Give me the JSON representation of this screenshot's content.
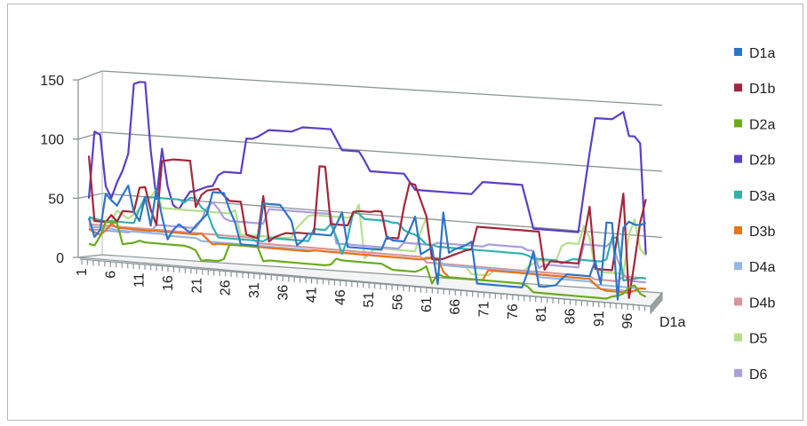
{
  "chart_data": {
    "type": "line",
    "subtype": "3d-line",
    "title": "",
    "xlabel": "",
    "ylabel": "",
    "series_axis_label": "D1a",
    "ylim": [
      0,
      150
    ],
    "yticks": [
      "0",
      "50",
      "100",
      "150"
    ],
    "x_tick_labels": [
      "1",
      "6",
      "11",
      "16",
      "21",
      "26",
      "31",
      "36",
      "41",
      "46",
      "51",
      "56",
      "61",
      "66",
      "71",
      "76",
      "81",
      "86",
      "91",
      "96"
    ],
    "x_count": 100,
    "grid": true,
    "legend_position": "right",
    "series": [
      {
        "name": "D1a",
        "color": "#2e75c8",
        "values": [
          29,
          14,
          20,
          50,
          45,
          41,
          50,
          58,
          37,
          30,
          50,
          27,
          57,
          35,
          17,
          25,
          30,
          27,
          24,
          30,
          35,
          40,
          58,
          58,
          58,
          45,
          35,
          18,
          18,
          18,
          18,
          52,
          52,
          52,
          52,
          46,
          40,
          21,
          25,
          31,
          31,
          31,
          31,
          31,
          40,
          50,
          23,
          23,
          23,
          23,
          23,
          23,
          23,
          34,
          31,
          31,
          31,
          40,
          51,
          22,
          25,
          28,
          0,
          56,
          25,
          28,
          30,
          32,
          35,
          3,
          3,
          3,
          3,
          3,
          3,
          3,
          3,
          3,
          15,
          31,
          5,
          5,
          6,
          7,
          12,
          16,
          16,
          16,
          16,
          16,
          28,
          11,
          58,
          58,
          0,
          55,
          60,
          58,
          58,
          60
        ]
      },
      {
        "name": "D1b",
        "color": "#a3273a",
        "values": [
          80,
          27,
          27,
          27,
          33,
          28,
          37,
          37,
          37,
          57,
          58,
          40,
          28,
          80,
          81,
          82,
          82,
          82,
          82,
          45,
          55,
          59,
          60,
          61,
          56,
          52,
          52,
          52,
          26,
          25,
          24,
          58,
          22,
          26,
          28,
          30,
          30,
          31,
          31,
          31,
          31,
          85,
          85,
          40,
          40,
          40,
          40,
          51,
          52,
          52,
          52,
          53,
          53,
          32,
          33,
          33,
          58,
          77,
          76,
          64,
          52,
          19,
          19,
          20,
          22,
          24,
          26,
          28,
          29,
          47,
          47,
          47,
          47,
          47,
          47,
          47,
          47,
          47,
          47,
          47,
          47,
          18,
          25,
          25,
          25,
          25,
          25,
          25,
          45,
          69,
          22,
          22,
          22,
          22,
          50,
          81,
          2,
          30,
          60,
          78
        ]
      },
      {
        "name": "D2a",
        "color": "#6bab1e",
        "values": [
          8,
          7,
          15,
          27,
          27,
          27,
          10,
          11,
          12,
          14,
          13,
          13,
          13,
          13,
          13,
          13,
          13,
          13,
          12,
          10,
          2,
          3,
          3,
          3,
          5,
          17,
          17,
          17,
          17,
          17,
          17,
          6,
          7,
          7,
          7,
          7,
          7,
          7,
          7,
          7,
          7,
          7,
          7,
          8,
          13,
          12,
          12,
          12,
          12,
          12,
          12,
          12,
          12,
          10,
          8,
          8,
          8,
          8,
          8,
          10,
          13,
          0,
          8,
          6,
          6,
          6,
          6,
          6,
          6,
          6,
          6,
          6,
          6,
          6,
          6,
          6,
          6,
          6,
          4,
          0,
          0,
          0,
          0,
          0,
          0,
          0,
          0,
          0,
          0,
          0,
          0,
          0,
          0,
          2,
          3,
          5,
          10,
          12,
          6,
          4
        ]
      },
      {
        "name": "D2b",
        "color": "#5b3fc4",
        "values": [
          45,
          100,
          98,
          56,
          47,
          60,
          70,
          84,
          141,
          143,
          143,
          88,
          49,
          90,
          60,
          45,
          42,
          50,
          57,
          58,
          60,
          62,
          63,
          72,
          75,
          75,
          75,
          75,
          103,
          103,
          105,
          108,
          111,
          111,
          111,
          111,
          111,
          113,
          115,
          115,
          115,
          115,
          115,
          115,
          107,
          99,
          99,
          99,
          99,
          92,
          84,
          84,
          84,
          84,
          84,
          84,
          84,
          78,
          72,
          72,
          72,
          72,
          72,
          72,
          72,
          72,
          72,
          72,
          72,
          77,
          82,
          82,
          82,
          82,
          82,
          82,
          82,
          82,
          66,
          49,
          49,
          49,
          49,
          49,
          49,
          49,
          49,
          49,
          80,
          110,
          137,
          137,
          137,
          137,
          140,
          143,
          125,
          125,
          120,
          36
        ]
      },
      {
        "name": "D3a",
        "color": "#33b0b0",
        "values": [
          30,
          29,
          28,
          27,
          28,
          28,
          28,
          28,
          28,
          40,
          50,
          50,
          50,
          50,
          50,
          50,
          50,
          48,
          52,
          52,
          45,
          42,
          30,
          22,
          22,
          22,
          22,
          22,
          22,
          22,
          22,
          22,
          25,
          25,
          25,
          25,
          25,
          25,
          25,
          25,
          35,
          35,
          35,
          40,
          30,
          17,
          30,
          51,
          50,
          46,
          46,
          46,
          46,
          46,
          45,
          45,
          40,
          38,
          37,
          34,
          30,
          30,
          29,
          29,
          29,
          29,
          29,
          29,
          29,
          29,
          29,
          29,
          29,
          29,
          29,
          29,
          29,
          29,
          28,
          26,
          26,
          26,
          26,
          26,
          24,
          26,
          28,
          28,
          28,
          28,
          28,
          28,
          30,
          47,
          47,
          15,
          16,
          17,
          18,
          18
        ]
      },
      {
        "name": "D3b",
        "color": "#e8731b",
        "values": [
          20,
          18,
          16,
          20,
          26,
          23,
          23,
          23,
          23,
          23,
          23,
          23,
          23,
          23,
          23,
          23,
          23,
          23,
          23,
          23,
          24,
          20,
          16,
          17,
          17,
          17,
          17,
          17,
          17,
          17,
          17,
          17,
          17,
          17,
          17,
          17,
          17,
          17,
          17,
          17,
          18,
          18,
          18,
          18,
          18,
          18,
          18,
          18,
          18,
          18,
          18,
          18,
          18,
          18,
          18,
          18,
          18,
          18,
          18,
          18,
          19,
          20,
          20,
          10,
          6,
          6,
          6,
          6,
          6,
          6,
          6,
          14,
          14,
          14,
          14,
          14,
          14,
          14,
          14,
          14,
          14,
          14,
          14,
          14,
          14,
          14,
          14,
          14,
          14,
          14,
          10,
          7,
          6,
          6,
          6,
          6,
          6,
          8,
          10,
          10
        ]
      },
      {
        "name": "D4a",
        "color": "#92b8e8",
        "values": [
          22,
          22,
          22,
          22,
          22,
          21,
          21,
          21,
          21,
          21,
          21,
          21,
          21,
          21,
          20,
          20,
          20,
          20,
          20,
          20,
          18,
          18,
          18,
          18,
          18,
          18,
          18,
          18,
          18,
          18,
          18,
          18,
          18,
          18,
          18,
          18,
          18,
          18,
          18,
          18,
          18,
          18,
          18,
          18,
          18,
          18,
          18,
          18,
          18,
          18,
          18,
          18,
          18,
          18,
          18,
          18,
          18,
          18,
          18,
          18,
          20,
          20,
          20,
          15,
          15,
          15,
          15,
          15,
          15,
          15,
          15,
          15,
          15,
          15,
          15,
          15,
          15,
          15,
          15,
          15,
          12,
          12,
          12,
          12,
          12,
          12,
          12,
          12,
          12,
          12,
          10,
          10,
          10,
          10,
          10,
          10,
          10,
          10,
          10,
          10
        ]
      },
      {
        "name": "D4b",
        "color": "#d9959c",
        "values": [
          24,
          24,
          24,
          24,
          24,
          24,
          24,
          24,
          24,
          24,
          24,
          24,
          24,
          24,
          24,
          24,
          24,
          24,
          24,
          24,
          24,
          24,
          24,
          24,
          24,
          24,
          24,
          24,
          24,
          24,
          20,
          20,
          20,
          20,
          20,
          20,
          20,
          20,
          20,
          20,
          20,
          20,
          20,
          20,
          20,
          20,
          20,
          20,
          20,
          20,
          20,
          20,
          20,
          20,
          20,
          20,
          20,
          20,
          20,
          20,
          16,
          16,
          16,
          16,
          16,
          16,
          16,
          16,
          16,
          16,
          16,
          16,
          16,
          16,
          16,
          16,
          16,
          16,
          16,
          16,
          16,
          16,
          16,
          16,
          16,
          16,
          16,
          16,
          16,
          16,
          14,
          14,
          14,
          14,
          14,
          18,
          18,
          18,
          18,
          18
        ]
      },
      {
        "name": "D5",
        "color": "#b5e08a",
        "values": [
          28,
          28,
          28,
          28,
          28,
          37,
          34,
          31,
          35,
          40,
          45,
          50,
          57,
          42,
          42,
          42,
          42,
          42,
          42,
          42,
          42,
          42,
          42,
          42,
          42,
          42,
          45,
          25,
          26,
          26,
          26,
          26,
          26,
          26,
          26,
          26,
          27,
          35,
          40,
          45,
          46,
          46,
          46,
          46,
          46,
          46,
          46,
          48,
          57,
          15,
          20,
          24,
          24,
          24,
          24,
          24,
          24,
          24,
          24,
          40,
          51,
          22,
          15,
          15,
          15,
          15,
          15,
          15,
          10,
          10,
          10,
          10,
          14,
          14,
          14,
          14,
          14,
          14,
          19,
          22,
          25,
          25,
          25,
          25,
          37,
          40,
          40,
          40,
          54,
          45,
          23,
          20,
          20,
          20,
          20,
          20,
          50,
          62,
          40,
          35
        ]
      },
      {
        "name": "D6",
        "color": "#ab9ddf",
        "values": [
          20,
          20,
          20,
          20,
          20,
          20,
          20,
          20,
          22,
          22,
          22,
          22,
          28,
          28,
          28,
          28,
          28,
          28,
          28,
          28,
          35,
          45,
          50,
          45,
          38,
          36,
          36,
          36,
          36,
          36,
          36,
          36,
          48,
          48,
          48,
          48,
          48,
          48,
          48,
          48,
          48,
          48,
          48,
          48,
          25,
          25,
          25,
          25,
          25,
          25,
          25,
          25,
          25,
          25,
          25,
          25,
          30,
          30,
          30,
          30,
          30,
          30,
          32,
          32,
          32,
          32,
          32,
          32,
          32,
          32,
          32,
          34,
          34,
          34,
          34,
          34,
          34,
          34,
          32,
          32,
          19,
          22,
          22,
          22,
          22,
          22,
          22,
          22,
          40,
          40,
          40,
          40,
          40,
          44,
          30,
          20,
          15,
          15,
          15,
          15
        ]
      }
    ]
  }
}
